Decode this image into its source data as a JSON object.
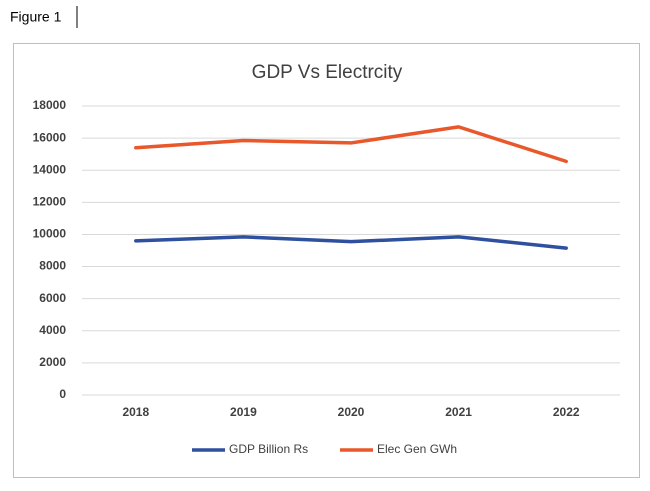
{
  "caption": "Figure 1",
  "chart_data": {
    "type": "line",
    "title": "GDP Vs Electrcity",
    "categories": [
      "2018",
      "2019",
      "2020",
      "2021",
      "2022"
    ],
    "series": [
      {
        "name": "GDP Billion Rs",
        "color": "#2f4f9f",
        "values": [
          9600,
          9850,
          9550,
          9850,
          9150
        ]
      },
      {
        "name": "Elec Gen GWh",
        "color": "#e8582a",
        "values": [
          15400,
          15850,
          15700,
          16700,
          14550
        ]
      }
    ],
    "ylim": [
      0,
      18000
    ],
    "yticks": [
      0,
      2000,
      4000,
      6000,
      8000,
      10000,
      12000,
      14000,
      16000,
      18000
    ],
    "grid": true,
    "legend": "bottom"
  }
}
